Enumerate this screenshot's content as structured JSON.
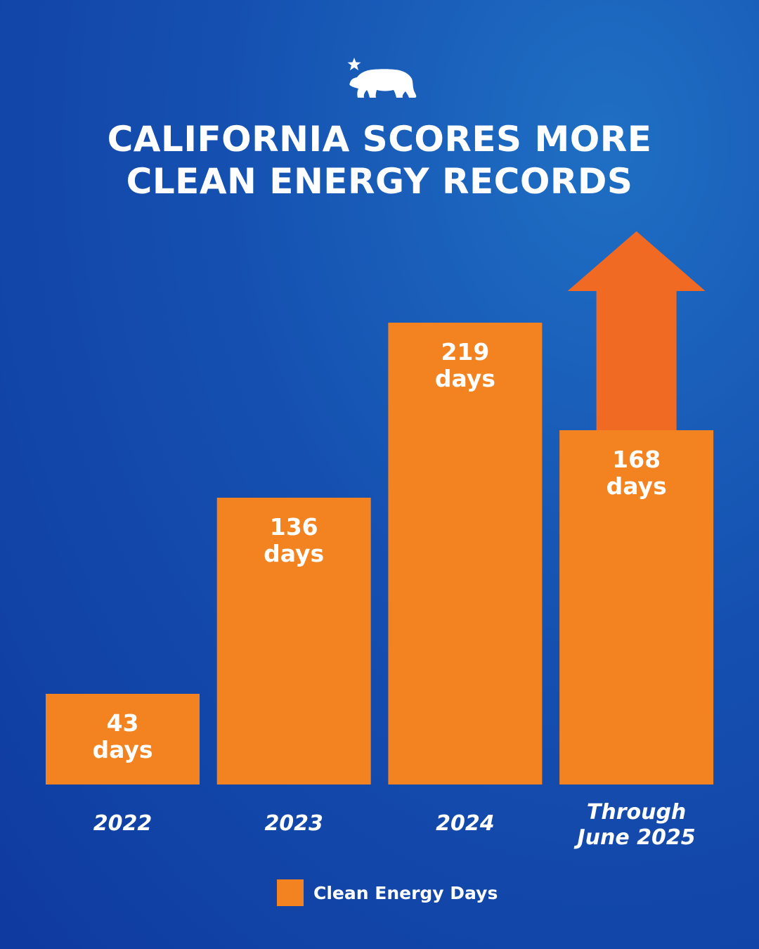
{
  "title_line1": "CALIFORNIA SCORES MORE",
  "title_line2": "CLEAN ENERGY RECORDS",
  "logo_icon": "california-bear-star-icon",
  "colors": {
    "bar": "#f38220",
    "arrow": "#f06a24",
    "background_top": "#1f6fc4",
    "background_bottom": "#0f3aa0",
    "text": "#ffffff"
  },
  "chart_data": {
    "type": "bar",
    "categories": [
      "2022",
      "2023",
      "2024",
      "Through June 2025"
    ],
    "category_lines": [
      [
        "2022"
      ],
      [
        "2023"
      ],
      [
        "2024"
      ],
      [
        "Through",
        "June 2025"
      ]
    ],
    "series": [
      {
        "name": "Clean Energy Days",
        "values": [
          43,
          136,
          219,
          168
        ],
        "labels": [
          [
            "43",
            "days"
          ],
          [
            "136",
            "days"
          ],
          [
            "219",
            "days"
          ],
          [
            "168",
            "days"
          ]
        ]
      }
    ],
    "ylim": [
      0,
      219
    ],
    "grid": false,
    "legend": "bottom-center",
    "annotation": "up-arrow-icon"
  },
  "legend": {
    "label": "Clean Energy Days"
  }
}
